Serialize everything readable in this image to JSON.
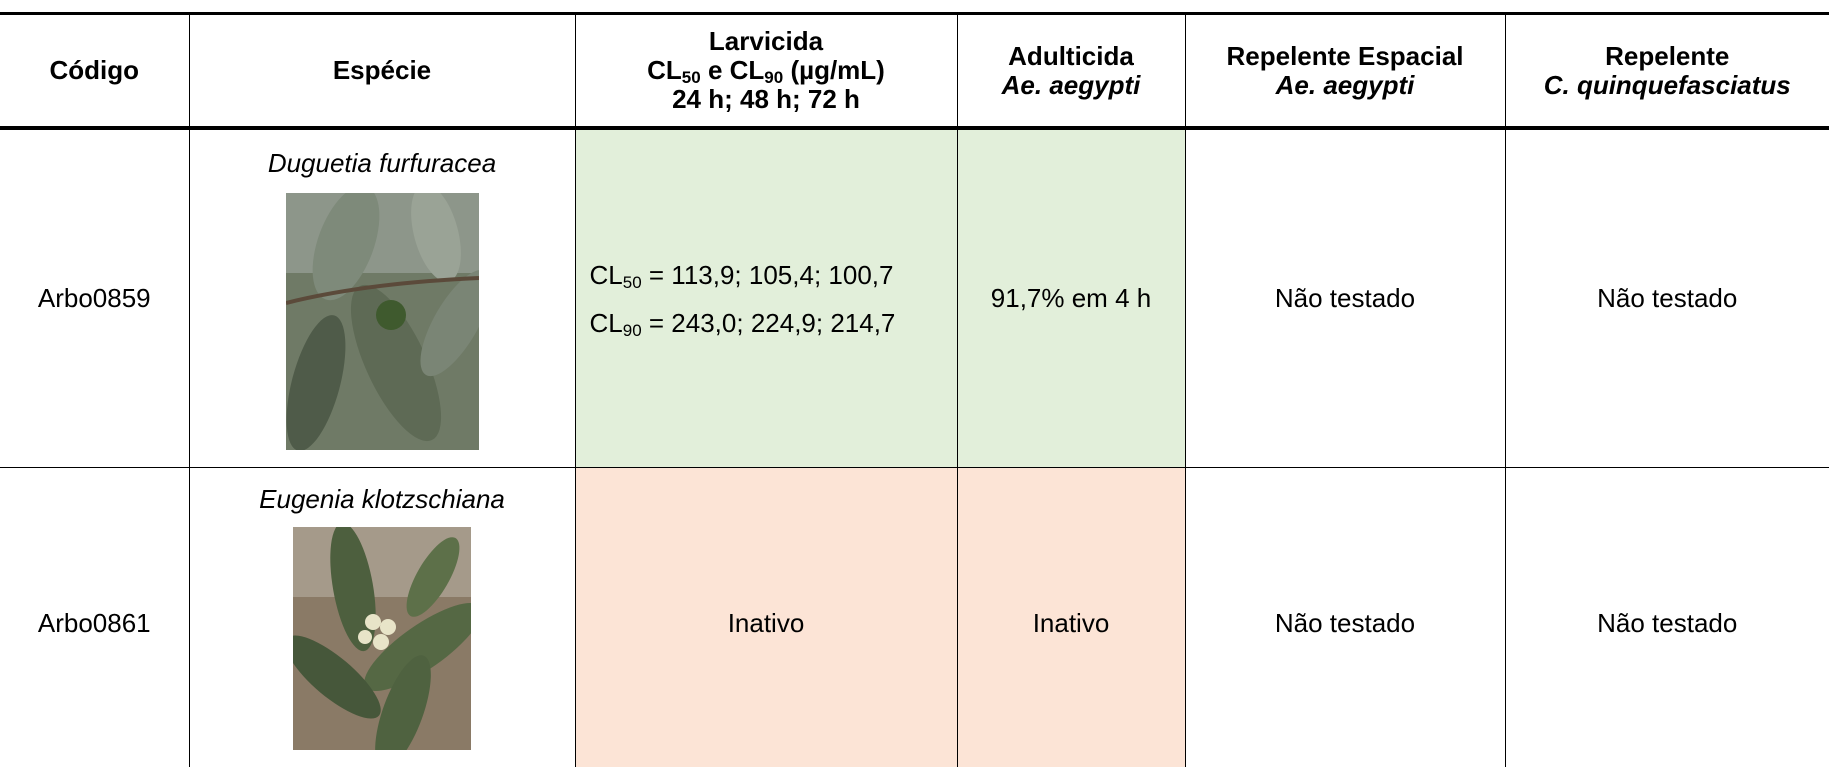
{
  "table": {
    "header": {
      "codigo": "Código",
      "especie": "Espécie",
      "larvicida": [
        "Larvicida",
        [
          "CL",
          "50",
          " e CL",
          "90",
          " (µg/mL)"
        ],
        "24 h; 48 h; 72 h"
      ],
      "adulticida": [
        "Adulticida",
        "Ae. aegypti"
      ],
      "repelente_espacial": [
        "Repelente Espacial",
        "Ae. aegypti"
      ],
      "repelente": [
        "Repelente",
        "C. quinquefasciatus"
      ]
    },
    "rows": [
      {
        "codigo": "Arbo0859",
        "especie": "Duguetia furfuracea",
        "larvicida": [
          [
            "CL",
            "50",
            " = 113,9; 105,4; 100,7"
          ],
          [
            "CL",
            "90",
            " = 243,0; 224,9; 214,7"
          ]
        ],
        "adulticida": "91,7% em 4 h",
        "repelente_espacial": "Não testado",
        "repelente": "Não testado"
      },
      {
        "codigo": "Arbo0861",
        "especie": "Eugenia klotzschiana",
        "larvicida": "Inativo",
        "adulticida": "Inativo",
        "repelente_espacial": "Não testado",
        "repelente": "Não testado"
      }
    ]
  }
}
